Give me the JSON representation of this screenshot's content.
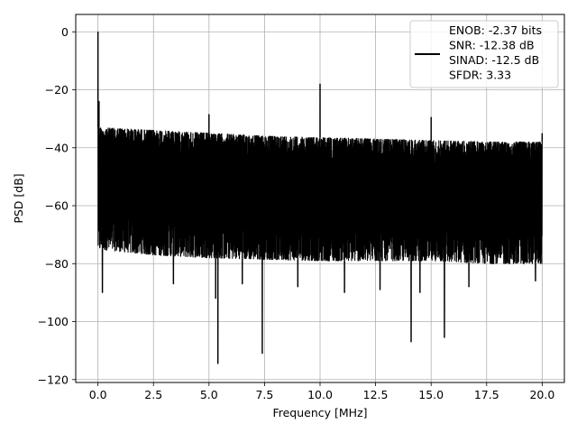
{
  "chart_data": {
    "type": "line",
    "title": "",
    "xlabel": "Frequency [MHz]",
    "ylabel": "PSD [dB]",
    "xlim": [
      -1.0,
      21.0
    ],
    "ylim": [
      -121,
      6
    ],
    "xticks": [
      0.0,
      2.5,
      5.0,
      7.5,
      10.0,
      12.5,
      15.0,
      17.5,
      20.0
    ],
    "xtick_labels": [
      "0.0",
      "2.5",
      "5.0",
      "7.5",
      "10.0",
      "12.5",
      "15.0",
      "17.5",
      "20.0"
    ],
    "yticks": [
      0,
      -20,
      -40,
      -60,
      -80,
      -100,
      -120
    ],
    "ytick_labels": [
      "0",
      "−20",
      "−40",
      "−60",
      "−80",
      "−100",
      "−120"
    ],
    "grid": true,
    "legend_position": "top-right",
    "legend_lines": [
      "ENOB: -2.37 bits",
      "SNR: -12.38 dB",
      "SINAD: -12.5 dB",
      "SFDR: 3.33"
    ],
    "line_color": "#000000",
    "series": [
      {
        "envelope": {
          "x": [
            0.0,
            2.5,
            5.0,
            7.5,
            10.0,
            12.5,
            15.0,
            17.5,
            20.0
          ],
          "upper": [
            -33,
            -34,
            -35,
            -36,
            -36.5,
            -37,
            -37.5,
            -38,
            -38
          ],
          "lower": [
            -75,
            -77,
            -78,
            -78.5,
            -79,
            -79,
            -79,
            -80,
            -80
          ]
        },
        "peaks": [
          {
            "x": 0.0,
            "y": 0
          },
          {
            "x": 0.05,
            "y": -24
          },
          {
            "x": 5.0,
            "y": -28.5
          },
          {
            "x": 10.0,
            "y": -18
          },
          {
            "x": 15.0,
            "y": -29.5
          },
          {
            "x": 20.0,
            "y": -35
          }
        ],
        "dips": [
          {
            "x": 0.2,
            "y": -90
          },
          {
            "x": 3.4,
            "y": -87
          },
          {
            "x": 5.3,
            "y": -92
          },
          {
            "x": 5.4,
            "y": -114.5
          },
          {
            "x": 6.5,
            "y": -87
          },
          {
            "x": 7.4,
            "y": -111
          },
          {
            "x": 9.0,
            "y": -88
          },
          {
            "x": 11.1,
            "y": -90
          },
          {
            "x": 12.7,
            "y": -89
          },
          {
            "x": 14.1,
            "y": -107
          },
          {
            "x": 14.5,
            "y": -90
          },
          {
            "x": 15.6,
            "y": -105.5
          },
          {
            "x": 16.7,
            "y": -88
          },
          {
            "x": 19.7,
            "y": -86
          }
        ]
      }
    ]
  }
}
